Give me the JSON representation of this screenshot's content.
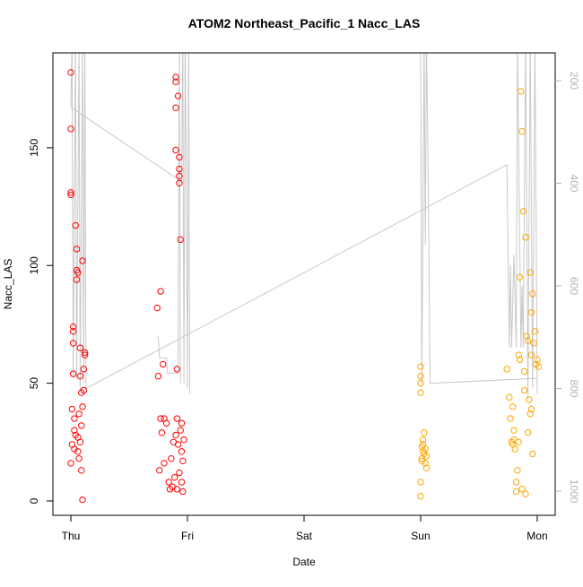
{
  "chart_data": {
    "type": "scatter",
    "title": "ATOM2 Northeast_Pacific_1 Nacc_LAS",
    "x_label": "Date",
    "y_label": "Nacc_LAS",
    "xlim": [
      -0.154,
      4.154
    ],
    "xticks": [
      {
        "value": 0,
        "label": "Thu"
      },
      {
        "value": 1,
        "label": "Fri"
      },
      {
        "value": 2,
        "label": "Sat"
      },
      {
        "value": 3,
        "label": "Sun"
      },
      {
        "value": 4,
        "label": "Mon"
      }
    ],
    "ylim": [
      -6.1,
      190.3
    ],
    "yticks": [
      0,
      50,
      100,
      150
    ],
    "y2lim": [
      1047,
      146
    ],
    "y2ticks": [
      200,
      400,
      600,
      800,
      1000
    ],
    "y2_color": "#b3b3b3",
    "series": [
      {
        "color": "#ff0000",
        "x": [
          0.0,
          0.0,
          0.0,
          0.0,
          0.01,
          0.01,
          0.0,
          0.02,
          0.02,
          0.02,
          0.02,
          0.03,
          0.03,
          0.03,
          0.04,
          0.05,
          0.05,
          0.05,
          0.06,
          0.06,
          0.07,
          0.07,
          0.08,
          0.08,
          0.09,
          0.09,
          0.1,
          0.1,
          0.1,
          0.11,
          0.11,
          0.12,
          0.12,
          0.09,
          0.08,
          0.06,
          0.04,
          0.74,
          0.75,
          0.76,
          0.77,
          0.77,
          0.78,
          0.79,
          0.8,
          0.8,
          0.82,
          0.84,
          0.85,
          0.87,
          0.9,
          0.9,
          0.9,
          0.9,
          0.91,
          0.91,
          0.92,
          0.93,
          0.93,
          0.93,
          0.93,
          0.94,
          0.94,
          0.95,
          0.96,
          0.96,
          0.97,
          0.95,
          0.93,
          0.92,
          0.91,
          0.9,
          0.89,
          0.88,
          0.95,
          0.86
        ],
        "values": [
          182,
          158,
          131,
          130,
          39,
          24,
          16,
          74,
          72,
          67,
          54,
          35,
          30,
          22,
          117,
          107,
          98,
          94,
          97,
          27,
          18,
          37,
          65,
          53,
          46,
          13,
          0.5,
          102,
          40,
          56,
          47,
          63,
          62,
          32,
          25,
          21,
          28,
          82,
          53,
          13,
          89,
          35,
          29,
          58,
          35,
          16,
          33,
          8,
          5,
          6,
          180,
          178,
          167,
          149,
          56,
          35,
          172,
          146,
          141,
          138,
          135,
          111,
          30,
          21,
          17,
          4,
          26,
          8,
          12,
          24,
          5,
          28,
          10,
          25,
          33,
          18
        ]
      },
      {
        "color": "#ffa500",
        "x": [
          3.0,
          3.0,
          3.0,
          3.0,
          3.01,
          3.01,
          3.0,
          3.0,
          3.02,
          3.02,
          3.03,
          3.04,
          3.04,
          3.03,
          3.05,
          3.05,
          3.02,
          3.01,
          3.74,
          3.76,
          3.77,
          3.78,
          3.79,
          3.8,
          3.81,
          3.82,
          3.82,
          3.83,
          3.84,
          3.85,
          3.85,
          3.86,
          3.87,
          3.88,
          3.89,
          3.89,
          3.9,
          3.91,
          3.92,
          3.93,
          3.94,
          3.95,
          3.95,
          3.96,
          3.97,
          3.98,
          3.99,
          4.0,
          4.01,
          3.96,
          3.9,
          3.87,
          3.84,
          3.8,
          3.79,
          3.92,
          3.94,
          3.95
        ],
        "values": [
          57,
          53,
          50,
          46,
          23,
          18,
          8,
          2,
          26,
          21,
          20,
          16,
          22,
          29,
          19,
          14,
          24,
          17,
          56,
          44,
          35,
          25,
          40,
          30,
          22,
          8,
          4,
          13,
          62,
          95,
          60,
          174,
          157,
          123,
          47,
          55,
          112,
          70,
          68,
          43,
          97,
          80,
          62,
          88,
          67,
          72,
          58,
          60,
          57,
          20,
          3,
          5,
          25,
          26,
          24,
          29,
          37,
          39
        ]
      },
      {
        "mode": "line",
        "axis": "y2",
        "color": "#c8c8c8",
        "x": [
          0.0,
          0.01,
          0.02,
          0.04,
          0.05,
          0.07,
          0.08,
          0.1,
          0.11,
          0.12,
          0.13,
          3.74,
          3.76,
          3.77,
          3.78,
          3.8,
          3.82,
          3.83,
          3.86,
          3.87,
          3.88,
          3.9,
          3.92,
          3.94,
          3.96,
          3.98,
          4.0,
          null,
          0.0,
          0.95,
          0.96,
          0.97,
          0.98,
          0.99,
          1.0,
          1.01,
          1.02,
          null,
          0.74,
          0.75,
          0.76,
          0.82,
          0.83,
          0.92,
          0.93,
          0.94,
          null,
          3.0,
          3.01,
          3.03,
          3.04,
          3.05,
          3.06,
          3.07,
          3.08,
          4.0
        ],
        "values": [
          252,
          120,
          780,
          120,
          780,
          120,
          803,
          120,
          790,
          120,
          800,
          364,
          720,
          560,
          720,
          540,
          720,
          120,
          720,
          600,
          720,
          120,
          820,
          120,
          800,
          120,
          810,
          null,
          252,
          397,
          120,
          790,
          120,
          400,
          800,
          120,
          810,
          null,
          700,
          700,
          740,
          740,
          770,
          770,
          120,
          790,
          null,
          120,
          790,
          120,
          520,
          120,
          300,
          500,
          790,
          780
        ]
      }
    ]
  }
}
